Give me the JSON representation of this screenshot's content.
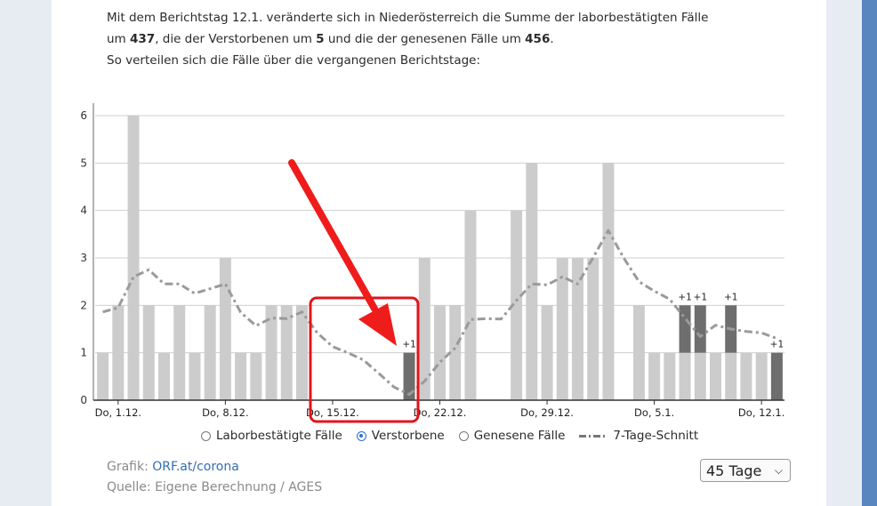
{
  "intro": {
    "line1": "Mit dem Berichtstag 12.1. veränderte sich in Niederösterreich die Summe der laborbestätigten Fälle",
    "line2_a": "um ",
    "line2_cases": "437",
    "line2_b": ", die der Verstorbenen um ",
    "line2_deaths": "5",
    "line2_c": " und die der genesenen Fälle um ",
    "line2_recovered": "456",
    "line2_d": ".",
    "line3": "So verteilen sich die Fälle über die vergangenen Berichtstage:"
  },
  "legend": {
    "cases": "Laborbestätigte Fälle",
    "deaths": "Verstorbene",
    "recovered": "Genesene Fälle",
    "avg": "7-Tage-Schnitt",
    "selected": "deaths"
  },
  "footer": {
    "source_label": "Grafik: ",
    "source_link": "ORF.at/corona",
    "source2": "Quelle: Eigene Berechnung / AGES"
  },
  "range_select": {
    "value": "45 Tage"
  },
  "colors": {
    "bar": "#cccccc",
    "bar_new": "#6e6e6e",
    "avg_line": "#9a9a9a",
    "annotation": "#e0161b",
    "arrow": "#ef1c1c"
  },
  "chart_data": {
    "type": "bar",
    "x_tick_labels": [
      "Do, 1.12.",
      "Do, 8.12.",
      "Do, 15.12.",
      "Do, 22.12.",
      "Do, 29.12.",
      "Do, 5.1.",
      "Do, 12.1."
    ],
    "values": [
      1,
      2,
      6,
      2,
      1,
      2,
      1,
      2,
      3,
      1,
      1,
      2,
      2,
      2,
      0,
      0,
      0,
      0,
      0,
      0,
      1,
      3,
      2,
      2,
      4,
      0,
      0,
      4,
      5,
      2,
      3,
      3,
      3,
      5,
      0,
      2,
      1,
      1,
      2,
      2,
      1,
      2,
      1,
      1,
      1
    ],
    "new_increments": [
      0,
      0,
      0,
      0,
      0,
      0,
      0,
      0,
      0,
      0,
      0,
      0,
      0,
      0,
      0,
      0,
      0,
      0,
      0,
      0,
      1,
      0,
      0,
      0,
      0,
      0,
      0,
      0,
      0,
      0,
      0,
      0,
      0,
      0,
      0,
      0,
      0,
      0,
      1,
      1,
      0,
      1,
      0,
      0,
      1
    ],
    "increment_label": "+1",
    "seven_day_avg": [
      1.86,
      1.95,
      2.6,
      2.75,
      2.45,
      2.45,
      2.25,
      2.35,
      2.45,
      1.85,
      1.57,
      1.73,
      1.72,
      1.86,
      1.42,
      1.13,
      1.0,
      0.85,
      0.57,
      0.28,
      0.12,
      0.4,
      0.8,
      1.1,
      1.7,
      1.72,
      1.71,
      2.1,
      2.45,
      2.43,
      2.6,
      2.45,
      3.0,
      3.58,
      3.0,
      2.5,
      2.3,
      2.13,
      1.73,
      1.34,
      1.58,
      1.5,
      1.45,
      1.42,
      1.3
    ],
    "ylim": [
      0,
      6
    ],
    "y_ticks": [
      0,
      1,
      2,
      3,
      4,
      5,
      6
    ],
    "grid": true
  }
}
